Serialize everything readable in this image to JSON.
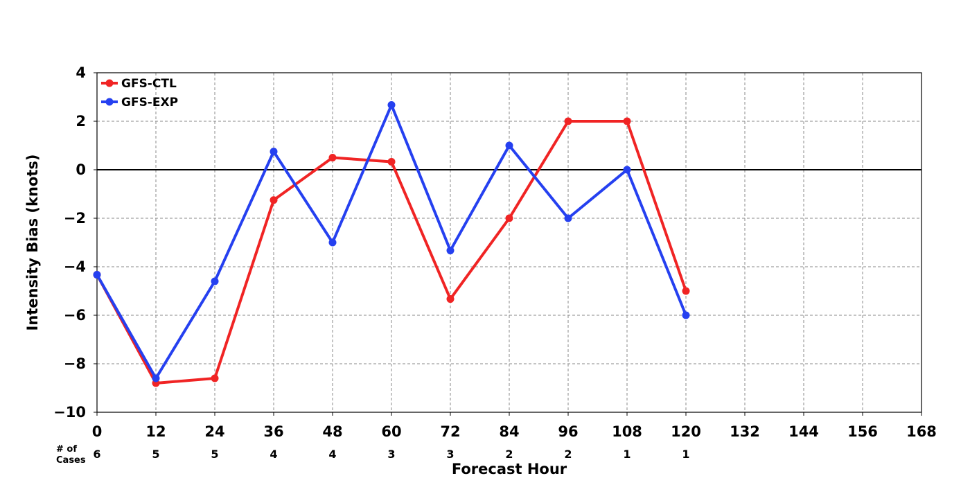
{
  "chart_data": {
    "type": "line",
    "title": "",
    "xlabel": "Forecast Hour",
    "ylabel": "Intensity Bias (knots)",
    "xlim": [
      0,
      168
    ],
    "ylim": [
      -10,
      4
    ],
    "xticks": [
      0,
      12,
      24,
      36,
      48,
      60,
      72,
      84,
      96,
      108,
      120,
      132,
      144,
      156,
      168
    ],
    "yticks": [
      4,
      2,
      0,
      -2,
      -4,
      -6,
      -8,
      -10
    ],
    "ytick_labels": [
      "4",
      "2",
      "0",
      "−2",
      "−4",
      "−6",
      "−8",
      "−10"
    ],
    "grid": true,
    "zero_line": true,
    "legend_position": "top-left",
    "x": [
      0,
      12,
      24,
      36,
      48,
      60,
      72,
      84,
      96,
      108,
      120
    ],
    "series": [
      {
        "name": "GFS-CTL",
        "color": "#f02424",
        "values": [
          -4.33,
          -8.8,
          -8.6,
          -1.25,
          0.5,
          0.33,
          -5.33,
          -2.0,
          2.0,
          2.0,
          -5.0
        ]
      },
      {
        "name": "GFS-EXP",
        "color": "#2540f0",
        "values": [
          -4.33,
          -8.6,
          -4.6,
          0.75,
          -3.0,
          2.67,
          -3.33,
          1.0,
          -2.0,
          0.0,
          -6.0
        ]
      }
    ],
    "cases": {
      "label_line1": "# of",
      "label_line2": "Cases",
      "values": [
        "6",
        "5",
        "5",
        "4",
        "4",
        "3",
        "3",
        "2",
        "2",
        "1",
        "1"
      ]
    }
  }
}
